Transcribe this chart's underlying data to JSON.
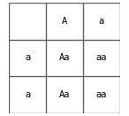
{
  "grid_rows": 3,
  "grid_cols": 3,
  "cell_texts": [
    [
      "",
      "A",
      "a"
    ],
    [
      "a",
      "Aa",
      "aa"
    ],
    [
      "a",
      "Aa",
      "aa"
    ]
  ],
  "line_color": "#606060",
  "text_color": "#000000",
  "background_color": "#ffffff",
  "font_size": 7.5,
  "line_width": 1.0,
  "figwidth": 1.46,
  "figheight": 1.31,
  "dpi": 100
}
